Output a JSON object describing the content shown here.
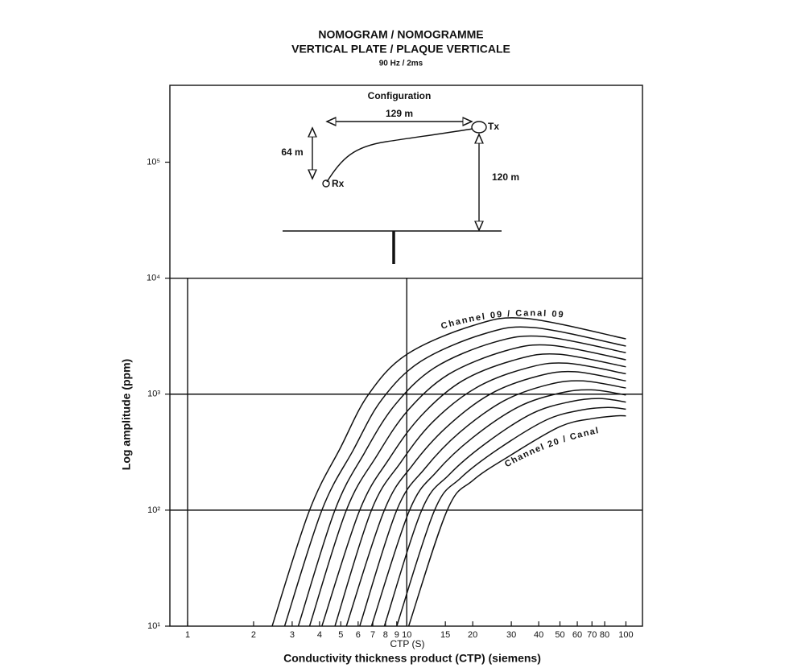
{
  "chart_data": {
    "type": "line",
    "title": "NOMOGRAM / NOMOGRAMME",
    "subtitle": "VERTICAL PLATE / PLAQUE VERTICALE",
    "note": "90 Hz / 2ms",
    "ylabel": "Log amplitude  (ppm)",
    "xunit_label": "CTP  (S)",
    "xlabel": "Conductivity thickness product (CTP) (siemens)",
    "xscale": "log",
    "yscale": "log",
    "xlim": [
      0.83,
      119
    ],
    "ylim": [
      10,
      460000
    ],
    "xticks": [
      1,
      2,
      3,
      4,
      5,
      6,
      7,
      8,
      9,
      10,
      15,
      20,
      30,
      40,
      50,
      60,
      70,
      80,
      100
    ],
    "yticks": [
      {
        "value": 10,
        "label": "10¹"
      },
      {
        "value": 100,
        "label": "10²"
      },
      {
        "value": 1000,
        "label": "10³"
      },
      {
        "value": 10000,
        "label": "10⁴"
      },
      {
        "value": 100000,
        "label": "10⁵"
      }
    ],
    "grid_x": [
      1,
      10
    ],
    "grid_y": [
      100,
      1000,
      10000
    ],
    "color": "#111111",
    "series": [
      {
        "x": [
          2.43,
          3.6,
          5.0,
          6.7,
          10,
          20,
          35,
          100
        ],
        "values": [
          10,
          100,
          350,
          1000,
          2200,
          3900,
          4500,
          3000
        ]
      },
      {
        "x": [
          2.77,
          4.1,
          5.7,
          7.7,
          11.6,
          22.4,
          38,
          100
        ],
        "values": [
          10,
          100,
          330,
          900,
          1920,
          3300,
          3750,
          2600
        ]
      },
      {
        "x": [
          3.2,
          4.7,
          6.4,
          8.8,
          13.4,
          25,
          42,
          100
        ],
        "values": [
          10,
          100,
          310,
          800,
          1690,
          2800,
          3140,
          2280
        ]
      },
      {
        "x": [
          3.6,
          5.3,
          7.3,
          10.1,
          15.5,
          28.1,
          45.3,
          100
        ],
        "values": [
          10,
          100,
          294,
          721,
          1480,
          2360,
          2640,
          1980
        ]
      },
      {
        "x": [
          4.1,
          6.1,
          8.3,
          11.6,
          17.9,
          31.6,
          49.3,
          100
        ],
        "values": [
          10,
          100,
          276,
          647,
          1300,
          1990,
          2210,
          1720
        ]
      },
      {
        "x": [
          4.7,
          6.9,
          9.4,
          13.2,
          20.8,
          35.3,
          53.7,
          100
        ],
        "values": [
          10,
          100,
          259,
          581,
          1140,
          1680,
          1850,
          1500
        ]
      },
      {
        "x": [
          5.3,
          7.9,
          10.6,
          15.2,
          24.0,
          39.6,
          58.6,
          100
        ],
        "values": [
          10,
          100,
          243,
          520,
          1000,
          1430,
          1560,
          1300
        ]
      },
      {
        "x": [
          6.1,
          9.0,
          12.1,
          17.4,
          27.9,
          44.4,
          63.8,
          100
        ],
        "values": [
          10,
          100,
          229,
          467,
          881,
          1210,
          1300,
          1130
        ]
      },
      {
        "x": [
          6.9,
          10.3,
          13.7,
          19.9,
          32.2,
          49.8,
          69.5,
          100
        ],
        "values": [
          10,
          100,
          215,
          419,
          774,
          1020,
          1090,
          984
        ]
      },
      {
        "x": [
          7.9,
          11.7,
          15.6,
          22.9,
          37.3,
          55.7,
          75.7,
          100
        ],
        "values": [
          10,
          100,
          202,
          376,
          681,
          861,
          918,
          855
        ]
      },
      {
        "x": [
          9.0,
          13.4,
          17.6,
          26.2,
          43.2,
          62.5,
          82.6,
          100
        ],
        "values": [
          10,
          100,
          189,
          337,
          597,
          729,
          769,
          743
        ]
      },
      {
        "x": [
          10.2,
          15.3,
          20,
          30,
          50,
          70,
          90,
          100
        ],
        "values": [
          10,
          100,
          180,
          300,
          525,
          615,
          650,
          650
        ]
      }
    ],
    "annotations": {
      "first_channel": "Channel 09  /  Canal 09",
      "last_channel": "Channel 20  /  Canal"
    },
    "configuration": {
      "title": "Configuration",
      "horizontal": "129 m",
      "vertical": "64 m",
      "height": "120 m",
      "tx": "Tx",
      "rx": "Rx"
    }
  }
}
